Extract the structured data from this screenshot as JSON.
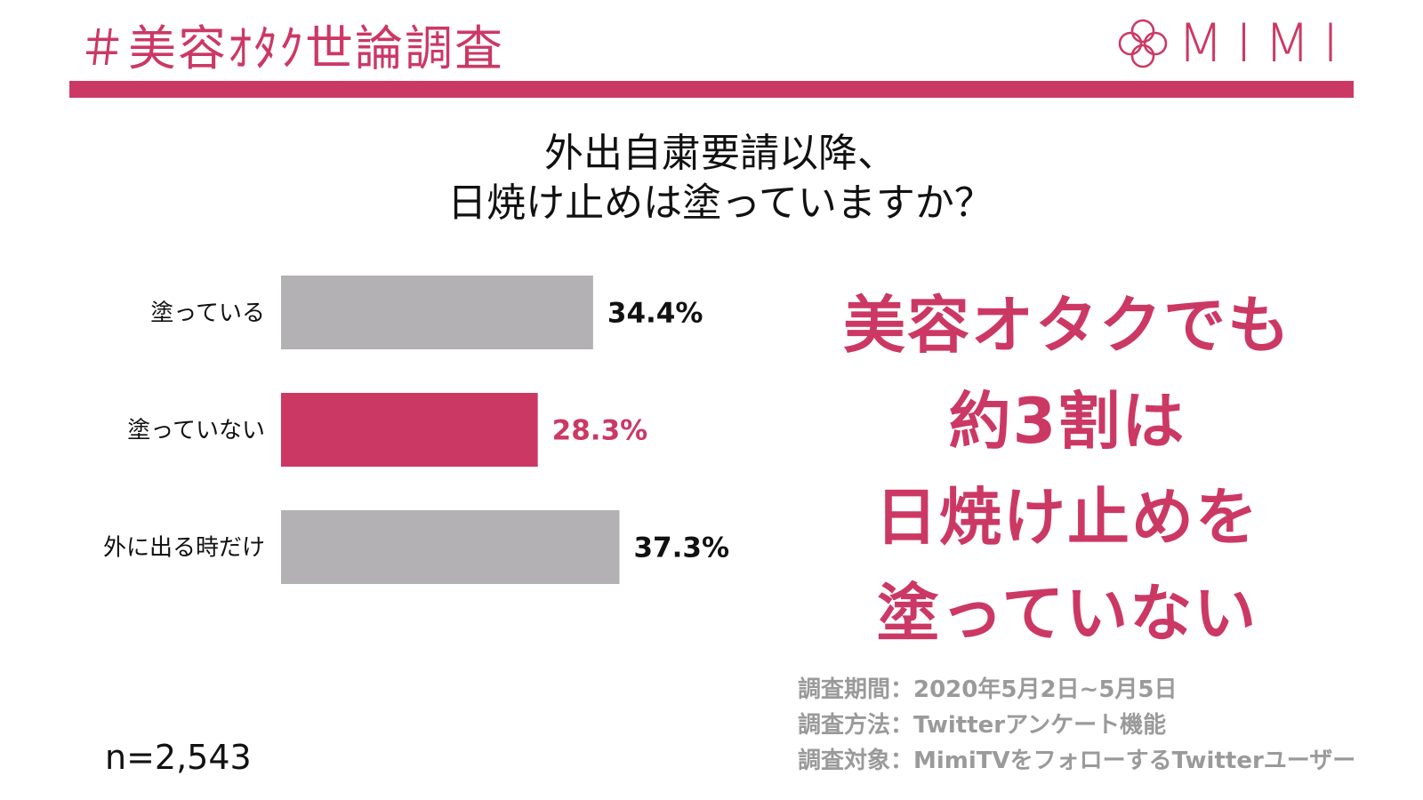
{
  "header": {
    "title": "＃美容ｵﾀｸ世論調査",
    "logo_text": "MIMI"
  },
  "colors": {
    "accent": "#cc3864",
    "bar_gray": "#b3b1b3",
    "text": "#111111",
    "meta_gray": "#9a9a9a"
  },
  "question": {
    "line1": "外出自粛要請以降、",
    "line2": "日焼け止めは塗っていますか？"
  },
  "chart_data": {
    "type": "bar",
    "orientation": "horizontal",
    "title": "外出自粛要請以降、日焼け止めは塗っていますか？",
    "categories": [
      "塗っている",
      "塗っていない",
      "外に出る時だけ"
    ],
    "values": [
      34.4,
      28.3,
      37.3
    ],
    "value_labels": [
      "34.4%",
      "28.3%",
      "37.3%"
    ],
    "highlight_index": 1,
    "bar_colors": [
      "#b3b1b3",
      "#cc3864",
      "#b3b1b3"
    ],
    "label_colors": [
      "#111111",
      "#cc3864",
      "#111111"
    ],
    "xlim": [
      0,
      50
    ],
    "grid": false
  },
  "headline": {
    "line1": "美容オタクでも",
    "line2": "約3割は",
    "line3": "日焼け止めを",
    "line4": "塗っていない"
  },
  "meta": {
    "period": "調査期間：2020年5月2日~5月5日",
    "method": "調査方法：Twitterアンケート機能",
    "target": "調査対象：MimiTVをフォローするTwitterユーザー"
  },
  "sample_size": "n=2,543"
}
